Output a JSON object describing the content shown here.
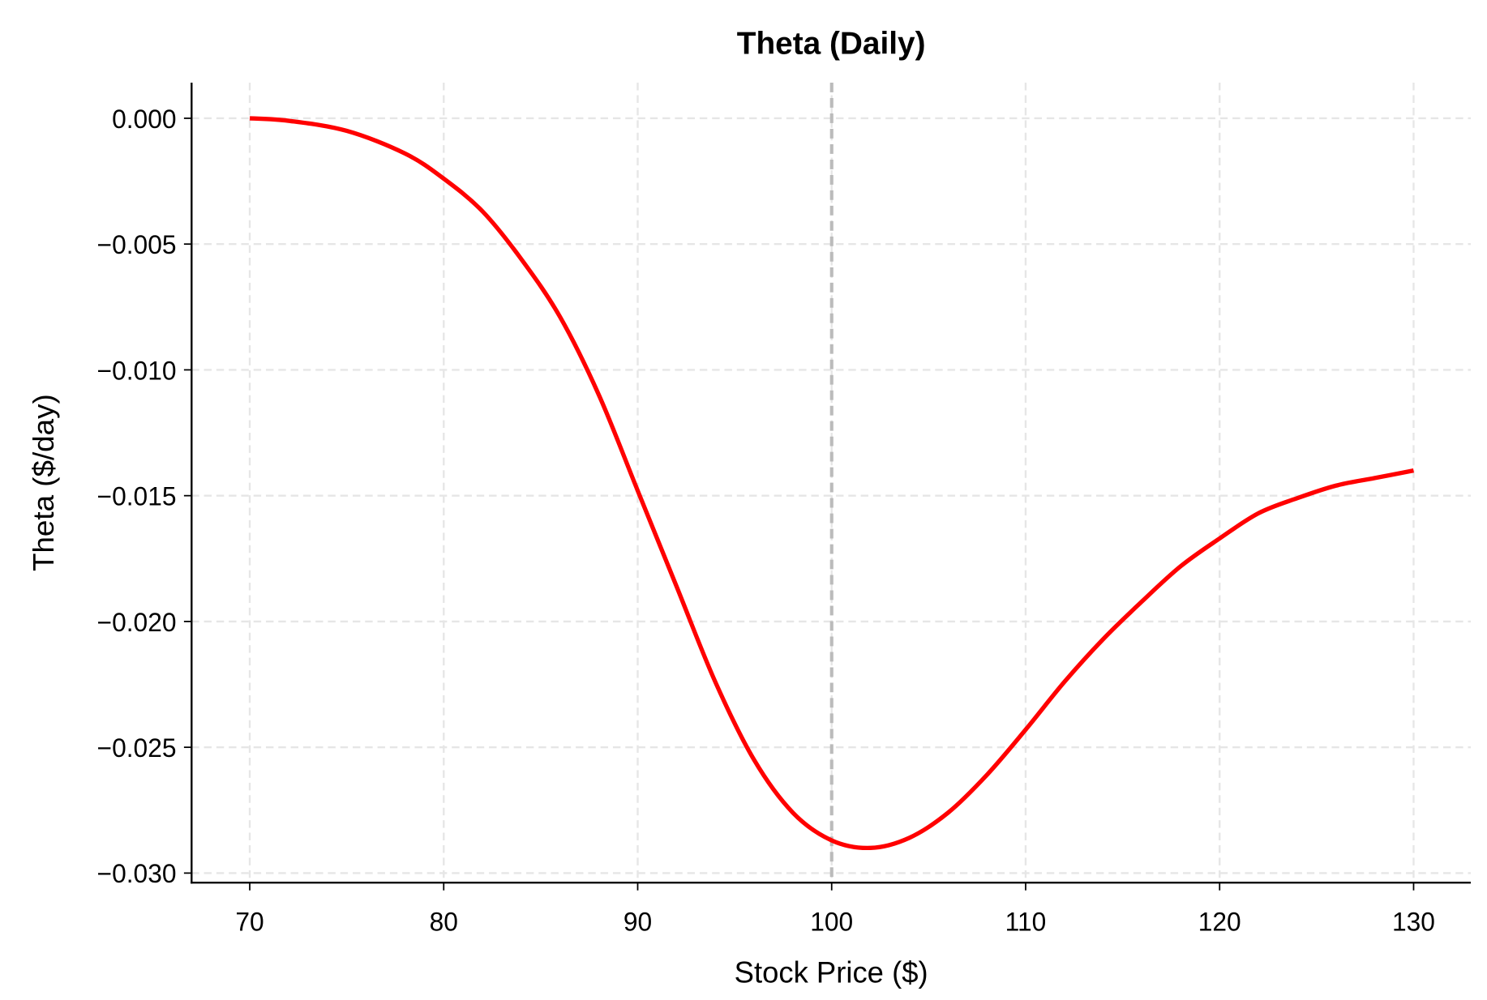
{
  "chart_data": {
    "type": "line",
    "title": "Theta (Daily)",
    "xlabel": "Stock Price ($)",
    "ylabel": "Theta ($/day)",
    "xlim": [
      67,
      133
    ],
    "ylim": [
      -0.0304,
      0.0014
    ],
    "grid": true,
    "xticks": [
      70,
      80,
      90,
      100,
      110,
      120,
      130
    ],
    "xtick_labels": [
      "70",
      "80",
      "90",
      "100",
      "110",
      "120",
      "130"
    ],
    "yticks": [
      0.0,
      -0.005,
      -0.01,
      -0.015,
      -0.02,
      -0.025,
      -0.03
    ],
    "ytick_labels": [
      "0.000",
      "−0.005",
      "−0.010",
      "−0.015",
      "−0.020",
      "−0.025",
      "−0.030"
    ],
    "reference_line": {
      "x": 100,
      "color": "#bbbbbb",
      "style": "dashed"
    },
    "series": [
      {
        "name": "Theta",
        "color": "#ff0000",
        "x": [
          70,
          72,
          75,
          78,
          80,
          82,
          84,
          86,
          88,
          90,
          92,
          94,
          96,
          98,
          100,
          102,
          104,
          106,
          108,
          110,
          112,
          114,
          116,
          118,
          120,
          122,
          124,
          126,
          128,
          130
        ],
        "y": [
          0.0,
          -0.0001,
          -0.0005,
          -0.0014,
          -0.0024,
          -0.0037,
          -0.0056,
          -0.0079,
          -0.011,
          -0.0148,
          -0.0186,
          -0.0224,
          -0.0255,
          -0.0276,
          -0.0287,
          -0.029,
          -0.0286,
          -0.0276,
          -0.0261,
          -0.0243,
          -0.0224,
          -0.0207,
          -0.0192,
          -0.0178,
          -0.0167,
          -0.0157,
          -0.0151,
          -0.0146,
          -0.0143,
          -0.014
        ]
      }
    ]
  }
}
